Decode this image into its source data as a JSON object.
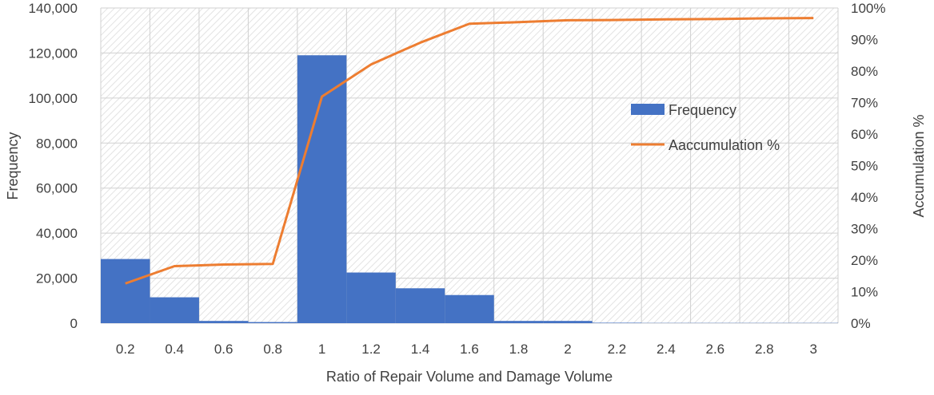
{
  "chart_data": {
    "type": "bar",
    "categories": [
      "0.2",
      "0.4",
      "0.6",
      "0.8",
      "1",
      "1.2",
      "1.4",
      "1.6",
      "1.8",
      "2",
      "2.2",
      "2.4",
      "2.6",
      "2.8",
      "3"
    ],
    "series": [
      {
        "name": "Frequency",
        "type": "bar",
        "axis": "left",
        "values": [
          28500,
          11500,
          1000,
          500,
          119000,
          22500,
          15500,
          12500,
          1000,
          1000,
          200,
          100,
          100,
          100,
          100
        ],
        "color": "#4472C4"
      },
      {
        "name": "Aaccumulation %",
        "type": "line",
        "axis": "right",
        "values": [
          12.6,
          18.1,
          18.6,
          18.8,
          71.9,
          82.1,
          89.0,
          95.0,
          95.5,
          96.1,
          96.2,
          96.4,
          96.5,
          96.7,
          96.8
        ],
        "color": "#ED7D31"
      }
    ],
    "xlabel": "Ratio of Repair Volume and Damage Volume",
    "ylabel": "Frequency",
    "y2label": "Accumulation %",
    "ylim": [
      0,
      140000
    ],
    "y2lim": [
      0,
      100
    ],
    "yticks": [
      "0",
      "20,000",
      "40,000",
      "60,000",
      "80,000",
      "100,000",
      "120,000",
      "140,000"
    ],
    "y2ticks": [
      "0%",
      "10%",
      "20%",
      "30%",
      "40%",
      "50%",
      "60%",
      "70%",
      "80%",
      "90%",
      "100%"
    ],
    "grid": true,
    "legend": "right"
  }
}
